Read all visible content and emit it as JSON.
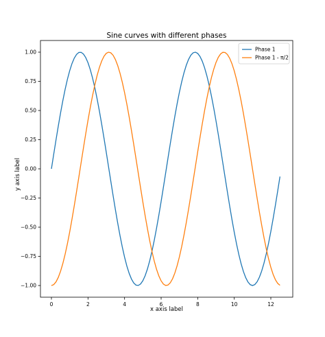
{
  "chart_data": {
    "type": "line",
    "title": "Sine curves with different phases",
    "xlabel": "x axis label",
    "ylabel": "y axis label",
    "xlim": [
      -0.6,
      13.2
    ],
    "ylim": [
      -1.1,
      1.1
    ],
    "xticks": [
      0,
      2,
      4,
      6,
      8,
      10,
      12
    ],
    "xtick_labels": [
      "0",
      "2",
      "4",
      "6",
      "8",
      "10",
      "12"
    ],
    "yticks": [
      -1.0,
      -0.75,
      -0.5,
      -0.25,
      0.0,
      0.25,
      0.5,
      0.75,
      1.0
    ],
    "ytick_labels": [
      "−1.00",
      "−0.75",
      "−0.50",
      "−0.25",
      "0.00",
      "0.25",
      "0.50",
      "0.75",
      "1.00"
    ],
    "grid": false,
    "legend_position": "top-right",
    "x_range": [
      0,
      12.5
    ],
    "sample_count": 101,
    "series": [
      {
        "name": "Phase 1",
        "function": "sin(x)",
        "color": "#1f77b4"
      },
      {
        "name": "Phase 1 - π/2",
        "function": "sin(x - π/2)",
        "color": "#ff7f0e"
      }
    ]
  }
}
